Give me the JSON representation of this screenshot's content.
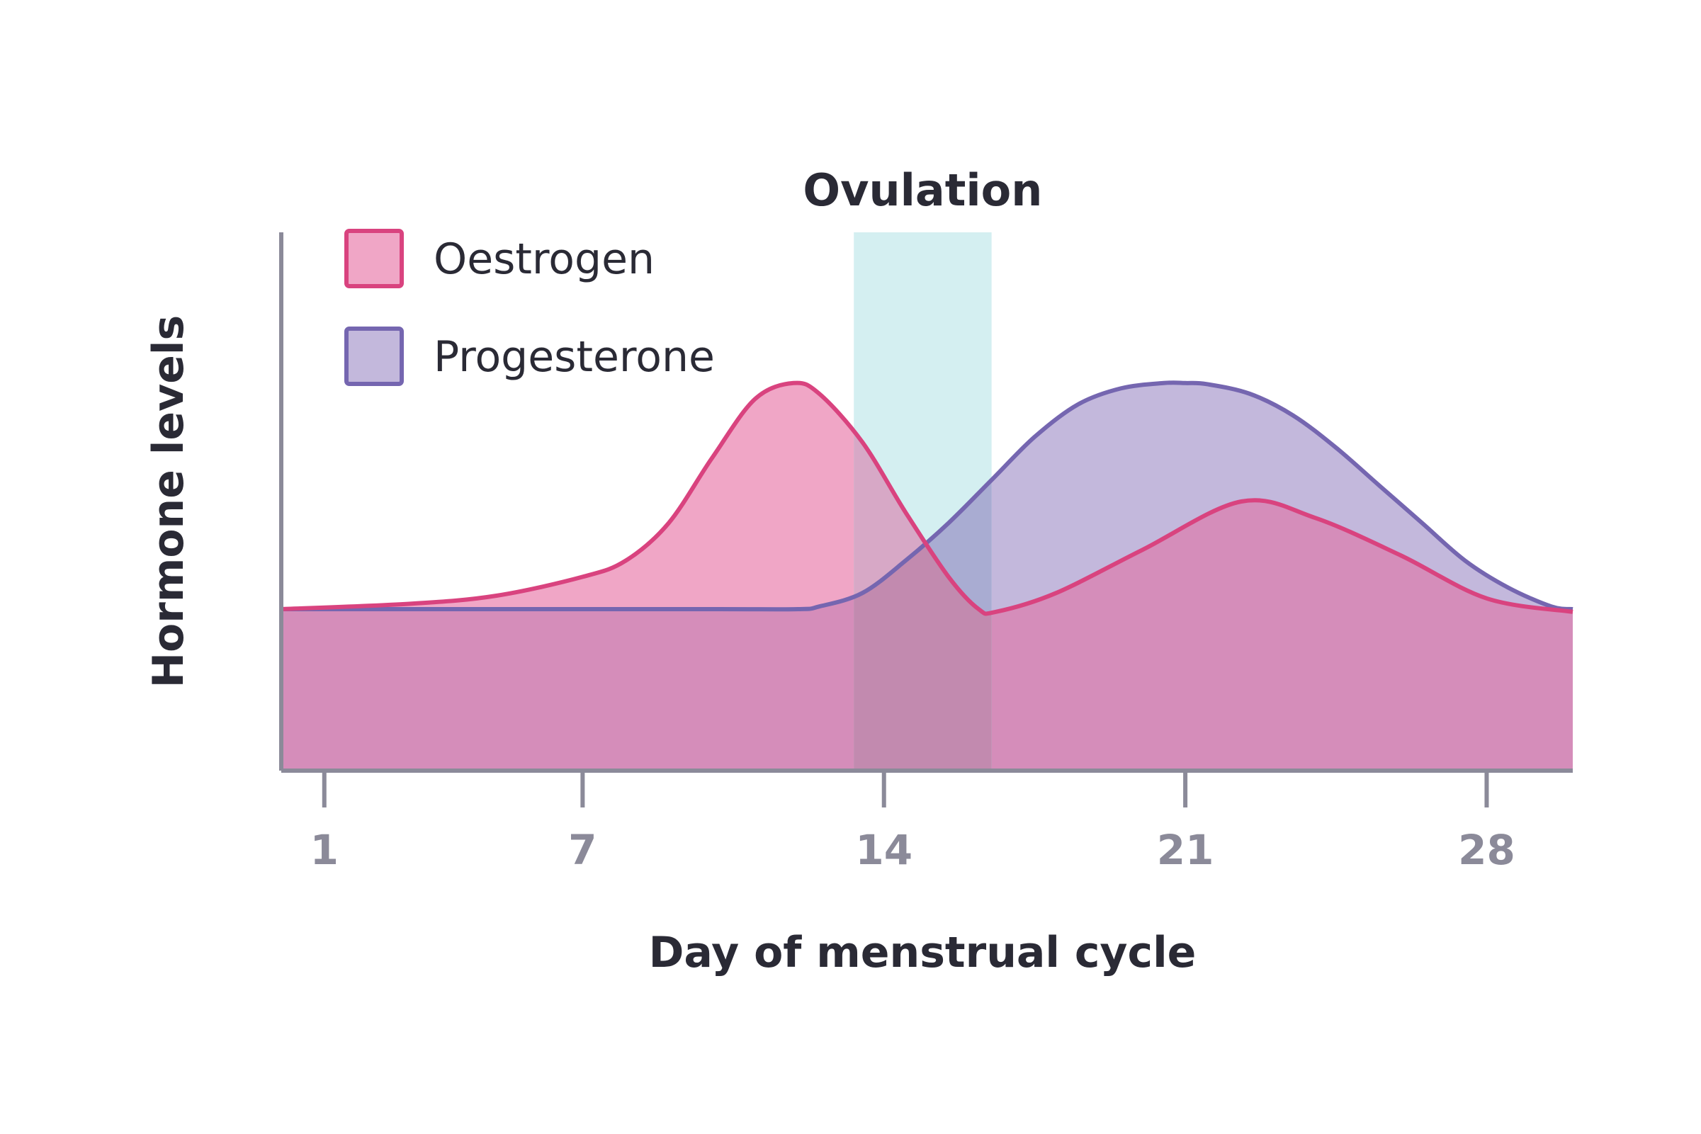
{
  "chart_data": {
    "type": "area",
    "xlabel": "Day of menstrual cycle",
    "ylabel": "Hormone levels",
    "xlim": [
      0,
      30
    ],
    "ylim": [
      0,
      10
    ],
    "x_ticks": [
      1,
      7,
      14,
      21,
      28
    ],
    "grid": false,
    "legend": "top-left",
    "annotations": [
      {
        "label": "Ovulation",
        "type": "band",
        "x_start": 13.3,
        "x_end": 16.5,
        "color": "#d2eef0"
      }
    ],
    "series": [
      {
        "name": "Oestrogen",
        "stroke": "#d9437f",
        "fill": "#f0a6c6",
        "x": [
          0,
          3,
          5,
          7,
          8,
          9,
          10,
          11,
          11.9,
          12.5,
          13.5,
          14.5,
          15.5,
          16.2,
          16.6,
          18,
          20,
          22.3,
          24,
          26,
          28,
          30
        ],
        "y": [
          3.0,
          3.1,
          3.25,
          3.6,
          3.9,
          4.6,
          5.8,
          6.9,
          7.2,
          7.0,
          6.1,
          4.8,
          3.6,
          3.0,
          2.95,
          3.3,
          4.1,
          5.0,
          4.7,
          4.0,
          3.2,
          2.95
        ]
      },
      {
        "name": "Progesterone",
        "stroke": "#7566b0",
        "fill": "#c3b8dc",
        "x": [
          0,
          5,
          10,
          12,
          12.5,
          13.5,
          14.5,
          15.5,
          16.5,
          17.5,
          18.5,
          19.5,
          20.5,
          21,
          21.5,
          22.5,
          23.5,
          24.5,
          25.5,
          26.5,
          27.5,
          28.5,
          29.5,
          30
        ],
        "y": [
          3.0,
          3.0,
          3.0,
          3.0,
          3.05,
          3.3,
          3.9,
          4.6,
          5.4,
          6.2,
          6.8,
          7.1,
          7.2,
          7.2,
          7.18,
          7.0,
          6.6,
          6.0,
          5.3,
          4.6,
          3.9,
          3.4,
          3.05,
          3.0
        ]
      }
    ],
    "base_fill": "#d58dba"
  }
}
